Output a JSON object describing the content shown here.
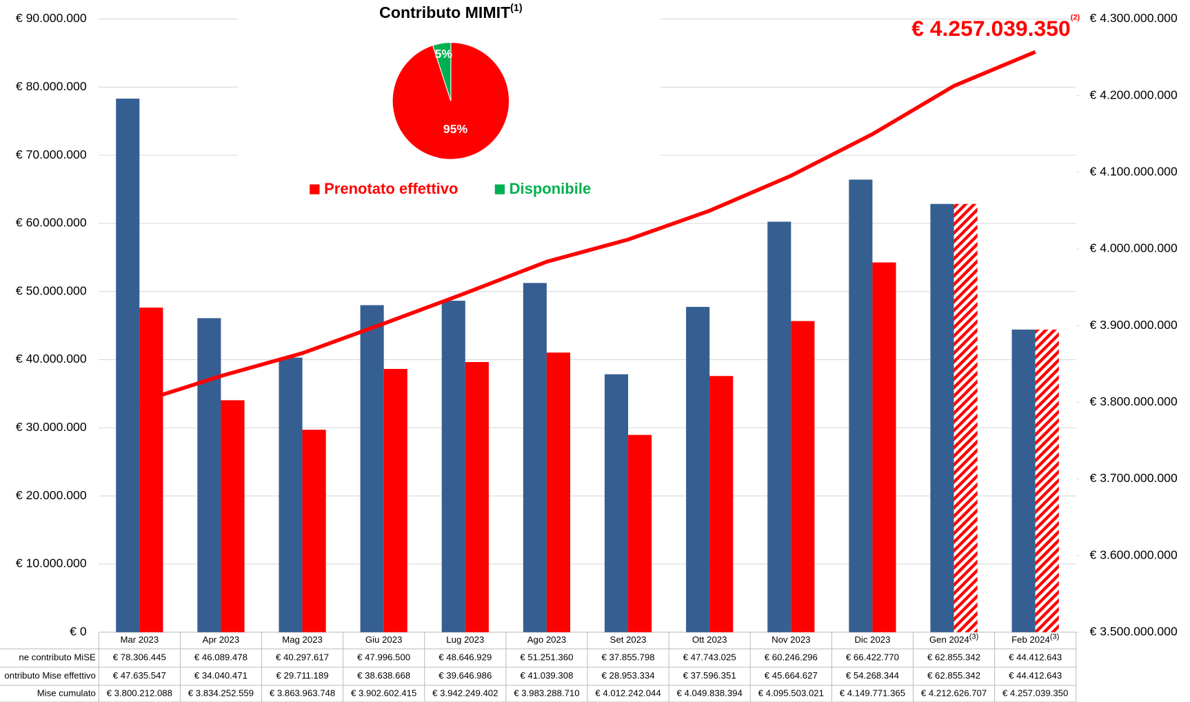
{
  "chart_data": [
    {
      "type": "bar",
      "categories": [
        "Mar 2023",
        "Apr 2023",
        "Mag 2023",
        "Giu 2023",
        "Lug 2023",
        "Ago 2023",
        "Set 2023",
        "Ott 2023",
        "Nov 2023",
        "Dic 2023",
        "Gen 2024",
        "Feb 2024"
      ],
      "category_notes": [
        null,
        null,
        null,
        null,
        null,
        null,
        null,
        null,
        null,
        null,
        "(3)",
        "(3)"
      ],
      "series": [
        {
          "name": "ne contributo MiSE",
          "color": "#365f91",
          "values": [
            78306445,
            46089478,
            40297617,
            47996500,
            48646929,
            51251360,
            37855798,
            47743025,
            60246296,
            66422770,
            62855342,
            44412643
          ],
          "value_labels": [
            "€ 78.306.445",
            "€ 46.089.478",
            "€ 40.297.617",
            "€ 47.996.500",
            "€ 48.646.929",
            "€ 51.251.360",
            "€ 37.855.798",
            "€ 47.743.025",
            "€ 60.246.296",
            "€ 66.422.770",
            "€ 62.855.342",
            "€ 44.412.643"
          ]
        },
        {
          "name": "ontributo Mise effettivo",
          "color": "#ff0000",
          "values": [
            47635547,
            34040471,
            29711189,
            38638668,
            39646986,
            41039308,
            28953334,
            37596351,
            45664627,
            54268344,
            62855342,
            44412643
          ],
          "value_labels": [
            "€ 47.635.547",
            "€ 34.040.471",
            "€ 29.711.189",
            "€ 38.638.668",
            "€ 39.646.986",
            "€ 41.039.308",
            "€ 28.953.334",
            "€ 37.596.351",
            "€ 45.664.627",
            "€ 54.268.344",
            "€ 62.855.342",
            "€ 44.412.643"
          ]
        },
        {
          "name": "Mise cumulato",
          "color": "#ff0000",
          "type": "line",
          "axis": "y2",
          "values": [
            3800212088,
            3834252559,
            3863963748,
            3902602415,
            3942249402,
            3983288710,
            4012242044,
            4049838394,
            4095503021,
            4149771365,
            4212626707,
            4257039350
          ],
          "value_labels": [
            "€ 3.800.212.088",
            "€ 3.834.252.559",
            "€ 3.863.963.748",
            "€ 3.902.602.415",
            "€ 3.942.249.402",
            "€ 3.983.288.710",
            "€ 4.012.242.044",
            "€ 4.049.838.394",
            "€ 4.095.503.021",
            "€ 4.149.771.365",
            "€ 4.212.626.707",
            "€ 4.257.039.350"
          ]
        }
      ],
      "ylim": [
        0,
        90000000
      ],
      "yticks": [
        {
          "value": 0,
          "label": "€ 0"
        },
        {
          "value": 10000000,
          "label": "€ 10.000.000"
        },
        {
          "value": 20000000,
          "label": "€ 20.000.000"
        },
        {
          "value": 30000000,
          "label": "€ 30.000.000"
        },
        {
          "value": 40000000,
          "label": "€ 40.000.000"
        },
        {
          "value": 50000000,
          "label": "€ 50.000.000"
        },
        {
          "value": 60000000,
          "label": "€ 60.000.000"
        },
        {
          "value": 70000000,
          "label": "€ 70.000.000"
        },
        {
          "value": 80000000,
          "label": "€ 80.000.000"
        },
        {
          "value": 90000000,
          "label": "€ 90.000.000"
        }
      ],
      "y2lim": [
        3500000000,
        4300000000
      ],
      "y2ticks": [
        {
          "value": 3500000000,
          "label": "€ 3.500.000.000"
        },
        {
          "value": 3600000000,
          "label": "€ 3.600.000.000"
        },
        {
          "value": 3700000000,
          "label": "€ 3.700.000.000"
        },
        {
          "value": 3800000000,
          "label": "€ 3.800.000.000"
        },
        {
          "value": 3900000000,
          "label": "€ 3.900.000.000"
        },
        {
          "value": 4000000000,
          "label": "€ 4.000.000.000"
        },
        {
          "value": 4100000000,
          "label": "€ 4.100.000.000"
        },
        {
          "value": 4200000000,
          "label": "€ 4.200.000.000"
        },
        {
          "value": 4300000000,
          "label": "€ 4.300.000.000"
        }
      ],
      "grid": true,
      "annotation": {
        "text": "€ 4.257.039.350",
        "note": "(2)",
        "color": "#ff0000"
      }
    },
    {
      "type": "pie",
      "title": "Contributo MIMIT",
      "title_note": "(1)",
      "categories": [
        "Prenotato effettivo",
        "Disponibile"
      ],
      "values": [
        95,
        5
      ],
      "value_labels": [
        "95%",
        "5%"
      ],
      "colors": [
        "#ff0000",
        "#00b050"
      ]
    }
  ]
}
